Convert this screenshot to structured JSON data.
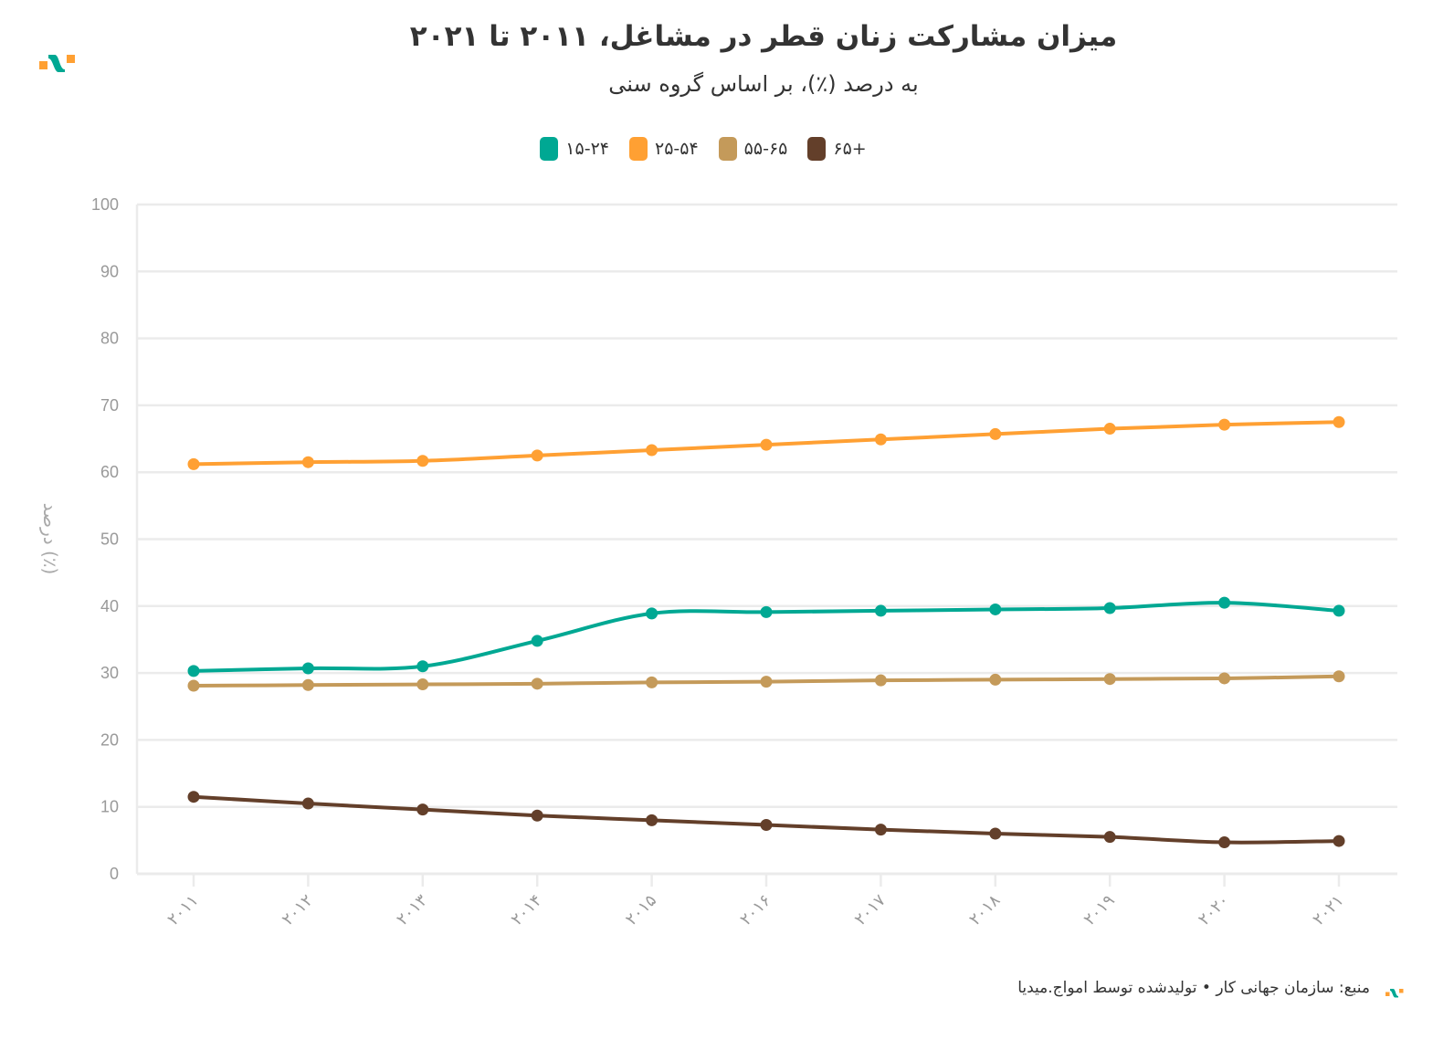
{
  "title": "میزان مشارکت زنان قطر در مشاغل، ۲۰۱۱ تا ۲۰۲۱",
  "subtitle": "به درصد (٪)، بر اساس گروه سنی",
  "footer": "منبع: سازمان جهانی کار • تولیدشده توسط امواج.میدیا",
  "colors": {
    "brand_orange": "#ffa033",
    "brand_teal": "#00a893"
  },
  "chart_data": {
    "type": "line",
    "title": "میزان مشارکت زنان قطر در مشاغل، ۲۰۱۱ تا ۲۰۲۱",
    "ylabel": "درصد (٪)",
    "xlabel": "",
    "ylim": [
      0,
      100
    ],
    "yticks": [
      "0",
      "10",
      "20",
      "30",
      "40",
      "50",
      "60",
      "70",
      "80",
      "90",
      "100"
    ],
    "x": [
      "۲۰۱۱",
      "۲۰۱۲",
      "۲۰۱۳",
      "۲۰۱۴",
      "۲۰۱۵",
      "۲۰۱۶",
      "۲۰۱۷",
      "۲۰۱۸",
      "۲۰۱۹",
      "۲۰۲۰",
      "۲۰۲۱"
    ],
    "grid": true,
    "legend_position": "top-center",
    "series": [
      {
        "name": "۱۵-۲۴",
        "color": "#00a893",
        "values": [
          30.3,
          30.7,
          31.0,
          34.8,
          38.9,
          39.1,
          39.3,
          39.5,
          39.7,
          40.5,
          39.3
        ]
      },
      {
        "name": "۲۵-۵۴",
        "color": "#ffa033",
        "values": [
          61.2,
          61.5,
          61.7,
          62.5,
          63.3,
          64.1,
          64.9,
          65.7,
          66.5,
          67.1,
          67.5
        ]
      },
      {
        "name": "۵۵-۶۵",
        "color": "#c49a5a",
        "values": [
          28.1,
          28.2,
          28.3,
          28.4,
          28.6,
          28.7,
          28.9,
          29.0,
          29.1,
          29.2,
          29.5
        ]
      },
      {
        "name": "۶۵+",
        "color": "#633f2a",
        "values": [
          11.5,
          10.5,
          9.6,
          8.7,
          8.0,
          7.3,
          6.6,
          6.0,
          5.5,
          4.7,
          4.9
        ]
      }
    ]
  }
}
